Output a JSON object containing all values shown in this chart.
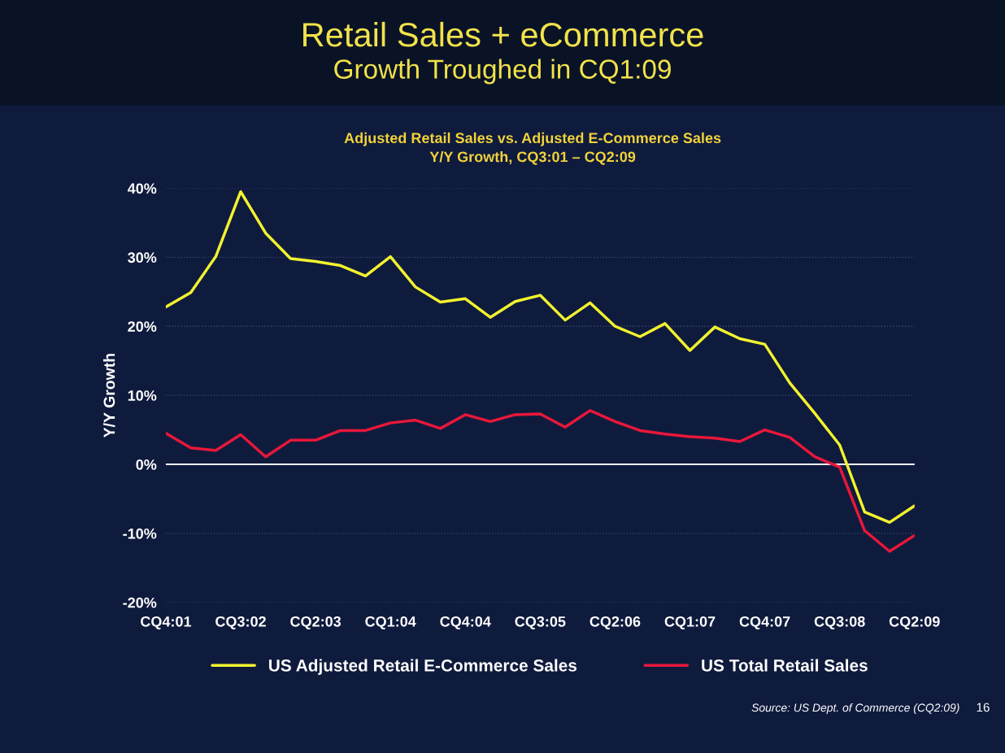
{
  "chart_data": {
    "type": "line",
    "title": "Retail Sales + eCommerce",
    "subtitle": "Growth Troughed in CQ1:09",
    "ylabel": "Y/Y Growth",
    "annotations": [
      "Adjusted Retail Sales vs. Adjusted E-Commerce Sales",
      "Y/Y Growth, CQ3:01 – CQ2:09",
      "Source: US Dept. of Commerce (CQ2:09)",
      "16"
    ],
    "categories": [
      "CQ4:01",
      null,
      null,
      "CQ3:02",
      null,
      null,
      "CQ2:03",
      null,
      null,
      "CQ1:04",
      null,
      null,
      "CQ4:04",
      null,
      null,
      "CQ3:05",
      null,
      null,
      "CQ2:06",
      null,
      null,
      "CQ1:07",
      null,
      null,
      "CQ4:07",
      null,
      null,
      "CQ3:08",
      null,
      null,
      "CQ2:09"
    ],
    "series": [
      {
        "name": "US Adjusted Retail E-Commerce Sales",
        "color": "#f2f22e",
        "values": [
          22.8,
          24.9,
          30.1,
          39.5,
          33.5,
          29.8,
          29.4,
          28.8,
          27.3,
          30.1,
          25.7,
          23.5,
          24.0,
          21.3,
          23.6,
          24.5,
          20.9,
          23.4,
          20.0,
          18.5,
          20.4,
          16.5,
          19.9,
          18.2,
          17.4,
          11.8,
          7.4,
          2.8,
          -6.9,
          -8.4,
          -6.0
        ]
      },
      {
        "name": "US Total Retail Sales",
        "color": "#e8173a",
        "values": [
          4.5,
          2.4,
          2.0,
          4.3,
          1.1,
          3.5,
          3.5,
          4.9,
          4.9,
          6.0,
          6.4,
          5.2,
          7.2,
          6.2,
          7.2,
          7.3,
          5.4,
          7.8,
          6.2,
          4.9,
          4.4,
          4.0,
          3.8,
          3.3,
          5.0,
          3.9,
          1.1,
          -0.4,
          -9.6,
          -12.6,
          -10.3
        ]
      }
    ],
    "ylim": [
      -20,
      40
    ],
    "yticks": [
      {
        "value": -20,
        "label": "-20%"
      },
      {
        "value": -10,
        "label": "-10%"
      },
      {
        "value": 0,
        "label": "0%"
      },
      {
        "value": 10,
        "label": "10%"
      },
      {
        "value": 20,
        "label": "20%"
      },
      {
        "value": 30,
        "label": "30%"
      },
      {
        "value": 40,
        "label": "40%"
      }
    ],
    "ref_lines": [
      {
        "axis": "y",
        "value": 0,
        "color": "#ffffff"
      }
    ],
    "grid": "y",
    "legend": "bottom",
    "marker": "none",
    "line_style": "solid"
  }
}
